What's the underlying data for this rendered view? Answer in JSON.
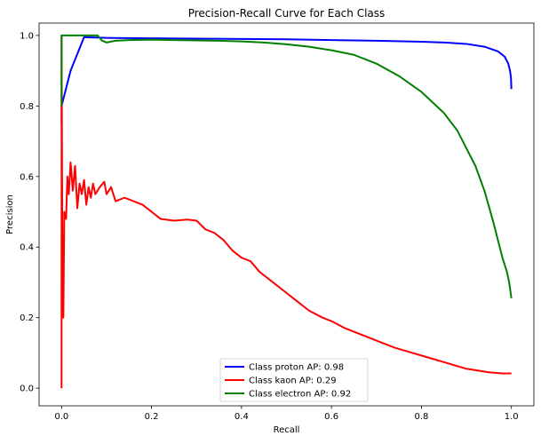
{
  "chart_data": {
    "type": "line",
    "title": "Precision-Recall Curve for Each Class",
    "xlabel": "Recall",
    "ylabel": "Precision",
    "xlim": [
      -0.05,
      1.05
    ],
    "ylim": [
      -0.05,
      1.035
    ],
    "xticks": [
      0.0,
      0.2,
      0.4,
      0.6,
      0.8,
      1.0
    ],
    "xtick_labels": [
      "0.0",
      "0.2",
      "0.4",
      "0.6",
      "0.8",
      "1.0"
    ],
    "yticks": [
      0.0,
      0.2,
      0.4,
      0.6,
      0.8,
      1.0
    ],
    "ytick_labels": [
      "0.0",
      "0.2",
      "0.4",
      "0.6",
      "0.8",
      "1.0"
    ],
    "grid": false,
    "legend_position": "bottom-center",
    "series": [
      {
        "name": "Class proton AP: 0.98",
        "color": "#0000ff",
        "points": [
          [
            0.0,
            0.75
          ],
          [
            0.0,
            0.8
          ],
          [
            0.02,
            0.9
          ],
          [
            0.05,
            0.995
          ],
          [
            0.1,
            0.993
          ],
          [
            0.2,
            0.992
          ],
          [
            0.3,
            0.991
          ],
          [
            0.4,
            0.99
          ],
          [
            0.5,
            0.989
          ],
          [
            0.6,
            0.987
          ],
          [
            0.7,
            0.985
          ],
          [
            0.8,
            0.982
          ],
          [
            0.85,
            0.98
          ],
          [
            0.9,
            0.976
          ],
          [
            0.94,
            0.968
          ],
          [
            0.97,
            0.955
          ],
          [
            0.985,
            0.94
          ],
          [
            0.993,
            0.92
          ],
          [
            0.997,
            0.9
          ],
          [
            0.999,
            0.88
          ],
          [
            1.0,
            0.848
          ]
        ]
      },
      {
        "name": "Class kaon AP: 0.29",
        "color": "#ff0000",
        "points": [
          [
            0.0,
            0.0
          ],
          [
            0.0,
            1.0
          ],
          [
            0.002,
            0.28
          ],
          [
            0.004,
            0.2
          ],
          [
            0.006,
            0.5
          ],
          [
            0.01,
            0.48
          ],
          [
            0.013,
            0.6
          ],
          [
            0.016,
            0.55
          ],
          [
            0.02,
            0.64
          ],
          [
            0.025,
            0.56
          ],
          [
            0.03,
            0.63
          ],
          [
            0.035,
            0.51
          ],
          [
            0.04,
            0.58
          ],
          [
            0.045,
            0.55
          ],
          [
            0.05,
            0.59
          ],
          [
            0.055,
            0.52
          ],
          [
            0.06,
            0.57
          ],
          [
            0.065,
            0.54
          ],
          [
            0.07,
            0.58
          ],
          [
            0.075,
            0.55
          ],
          [
            0.085,
            0.57
          ],
          [
            0.095,
            0.585
          ],
          [
            0.1,
            0.55
          ],
          [
            0.11,
            0.57
          ],
          [
            0.12,
            0.53
          ],
          [
            0.14,
            0.54
          ],
          [
            0.16,
            0.53
          ],
          [
            0.18,
            0.52
          ],
          [
            0.2,
            0.5
          ],
          [
            0.22,
            0.48
          ],
          [
            0.25,
            0.475
          ],
          [
            0.28,
            0.478
          ],
          [
            0.3,
            0.475
          ],
          [
            0.32,
            0.45
          ],
          [
            0.34,
            0.44
          ],
          [
            0.36,
            0.42
          ],
          [
            0.38,
            0.39
          ],
          [
            0.4,
            0.37
          ],
          [
            0.42,
            0.36
          ],
          [
            0.44,
            0.33
          ],
          [
            0.46,
            0.31
          ],
          [
            0.48,
            0.29
          ],
          [
            0.5,
            0.27
          ],
          [
            0.52,
            0.25
          ],
          [
            0.55,
            0.22
          ],
          [
            0.58,
            0.2
          ],
          [
            0.6,
            0.19
          ],
          [
            0.63,
            0.17
          ],
          [
            0.66,
            0.155
          ],
          [
            0.7,
            0.135
          ],
          [
            0.74,
            0.115
          ],
          [
            0.78,
            0.1
          ],
          [
            0.82,
            0.085
          ],
          [
            0.86,
            0.07
          ],
          [
            0.9,
            0.055
          ],
          [
            0.95,
            0.045
          ],
          [
            0.98,
            0.042
          ],
          [
            1.0,
            0.042
          ]
        ]
      },
      {
        "name": "Class electron AP: 0.92",
        "color": "#008000",
        "points": [
          [
            0.0,
            0.8
          ],
          [
            0.0,
            1.0
          ],
          [
            0.02,
            1.0
          ],
          [
            0.05,
            1.0
          ],
          [
            0.08,
            1.0
          ],
          [
            0.09,
            0.985
          ],
          [
            0.1,
            0.98
          ],
          [
            0.12,
            0.985
          ],
          [
            0.15,
            0.987
          ],
          [
            0.2,
            0.988
          ],
          [
            0.25,
            0.987
          ],
          [
            0.3,
            0.986
          ],
          [
            0.35,
            0.985
          ],
          [
            0.4,
            0.983
          ],
          [
            0.45,
            0.98
          ],
          [
            0.5,
            0.975
          ],
          [
            0.55,
            0.968
          ],
          [
            0.6,
            0.958
          ],
          [
            0.65,
            0.945
          ],
          [
            0.7,
            0.92
          ],
          [
            0.75,
            0.885
          ],
          [
            0.8,
            0.84
          ],
          [
            0.85,
            0.78
          ],
          [
            0.88,
            0.73
          ],
          [
            0.9,
            0.68
          ],
          [
            0.92,
            0.63
          ],
          [
            0.94,
            0.56
          ],
          [
            0.96,
            0.47
          ],
          [
            0.97,
            0.42
          ],
          [
            0.98,
            0.37
          ],
          [
            0.99,
            0.33
          ],
          [
            0.995,
            0.3
          ],
          [
            1.0,
            0.255
          ]
        ]
      }
    ]
  }
}
